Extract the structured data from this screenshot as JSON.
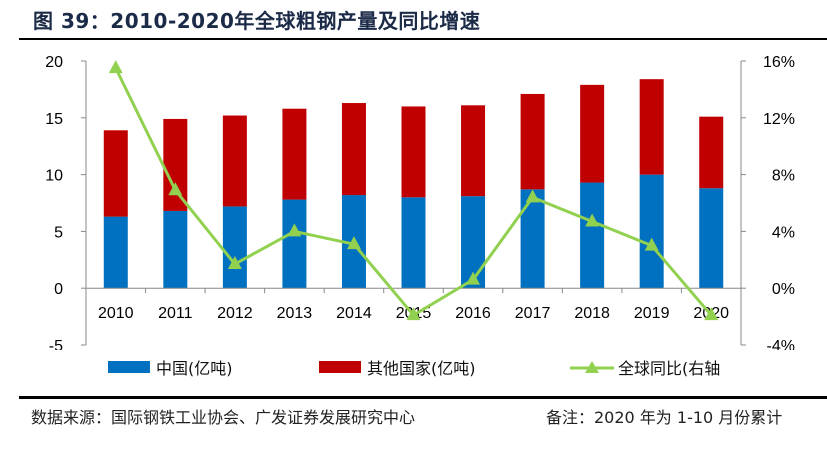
{
  "title": "图 39：2010-2020年全球粗钢产量及同比增速",
  "footer": {
    "source": "数据来源：国际钢铁工业协会、广发证券发展研究中心",
    "note": "备注：2020 年为 1-10 月份累计"
  },
  "chart_data": {
    "type": "bar",
    "stacked": true,
    "categories": [
      "2010",
      "2011",
      "2012",
      "2013",
      "2014",
      "2015",
      "2016",
      "2017",
      "2018",
      "2019",
      "2020"
    ],
    "series": [
      {
        "name": "中国(亿吨)",
        "type": "bar",
        "axis": "left",
        "color": "#0070c0",
        "values": [
          6.3,
          6.8,
          7.2,
          7.8,
          8.2,
          8.0,
          8.1,
          8.7,
          9.3,
          10.0,
          8.8
        ]
      },
      {
        "name": "其他国家(亿吨)",
        "type": "bar",
        "axis": "left",
        "color": "#c00000",
        "values": [
          7.6,
          8.1,
          8.0,
          8.0,
          8.1,
          8.0,
          8.0,
          8.4,
          8.6,
          8.4,
          6.3
        ]
      },
      {
        "name": "全球同比(右轴",
        "type": "line",
        "marker": "triangle",
        "axis": "right",
        "color": "#92d050",
        "values": [
          15.5,
          6.9,
          1.7,
          4.0,
          3.1,
          -1.9,
          0.6,
          6.4,
          4.7,
          3.0,
          -1.9
        ]
      }
    ],
    "y_left": {
      "range": [
        -5,
        20
      ],
      "ticks": [
        "-5",
        "0",
        "5",
        "10",
        "15",
        "20"
      ]
    },
    "y_right": {
      "range": [
        -4,
        16
      ],
      "ticks": [
        "-4%",
        "0%",
        "4%",
        "8%",
        "12%",
        "16%"
      ]
    },
    "grid": false,
    "legend_position": "bottom"
  }
}
